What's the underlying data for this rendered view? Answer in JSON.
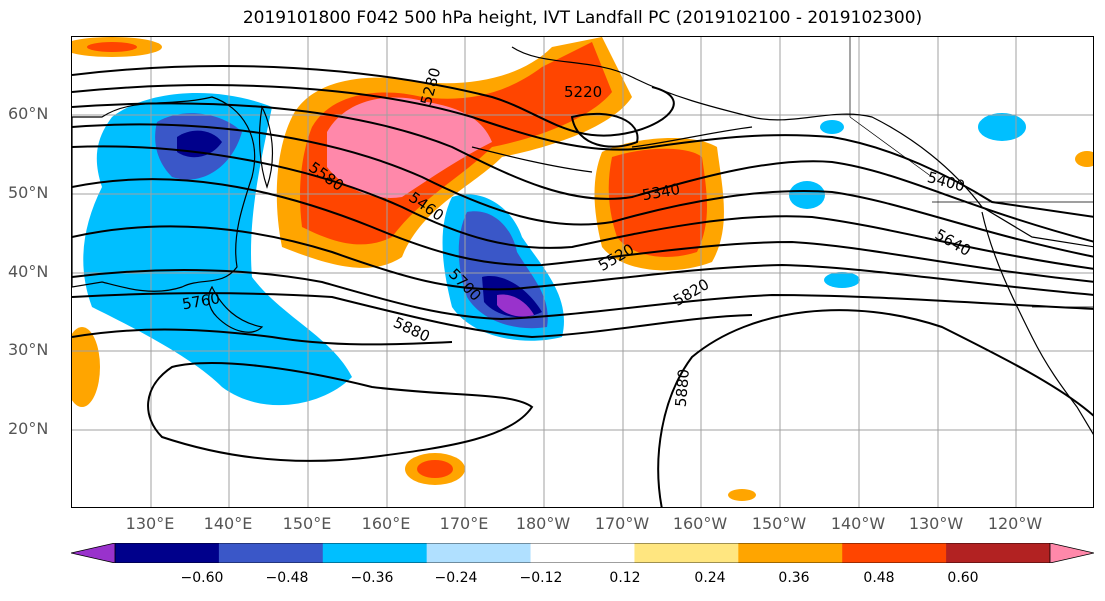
{
  "title": "2019101800 F042 500 hPa height, IVT Landfall PC (2019102100 - 2019102300)",
  "lat_labels": [
    "20°N",
    "30°N",
    "40°N",
    "50°N",
    "60°N"
  ],
  "lon_labels": [
    "130°E",
    "140°E",
    "150°E",
    "160°E",
    "170°E",
    "180°W",
    "170°W",
    "160°W",
    "150°W",
    "140°W",
    "130°W",
    "120°W"
  ],
  "contour_labels": [
    "5220",
    "5280",
    "5340",
    "5400",
    "5460",
    "5520",
    "5580",
    "5640",
    "5700",
    "5760",
    "5820",
    "5880",
    "5880"
  ],
  "colorbar": {
    "tick_labels": [
      "−0.60",
      "−0.48",
      "−0.36",
      "−0.24",
      "−0.12",
      "0.12",
      "0.24",
      "0.36",
      "0.48",
      "0.60"
    ],
    "colors": [
      "#9932cc",
      "#00008b",
      "#3a57c8",
      "#00bfff",
      "#b0e0ff",
      "#ffffff",
      "#ffe680",
      "#ffa500",
      "#ff4500",
      "#b22222",
      "#ff88aa"
    ]
  }
}
